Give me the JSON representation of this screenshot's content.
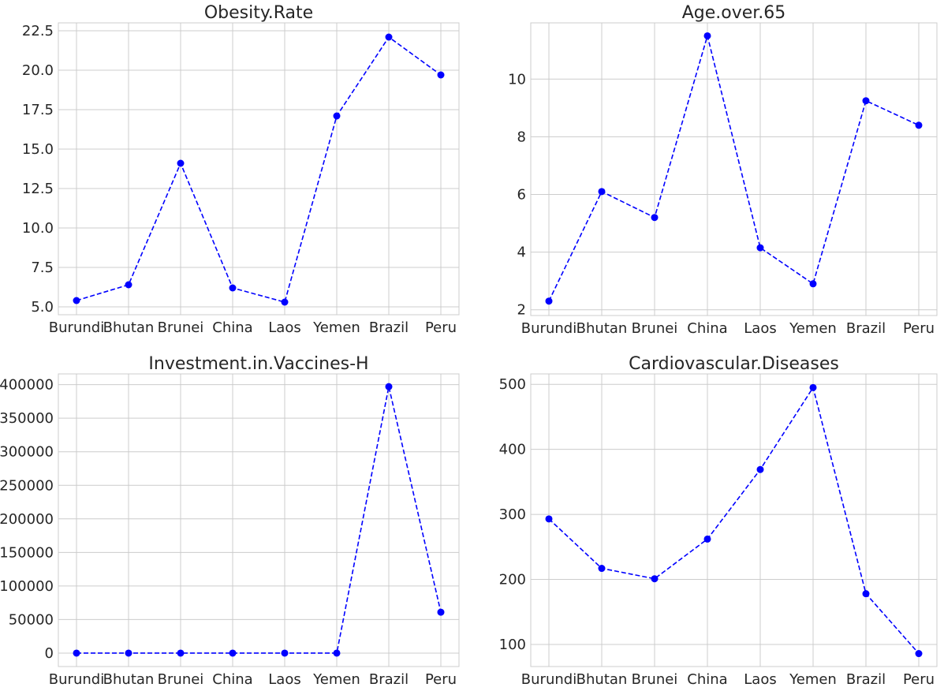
{
  "chart_data": [
    {
      "type": "line",
      "title": "Obesity.Rate",
      "categories": [
        "Burundi",
        "Bhutan",
        "Brunei",
        "China",
        "Laos",
        "Yemen",
        "Brazil",
        "Peru"
      ],
      "values": [
        5.4,
        6.4,
        14.1,
        6.2,
        5.3,
        17.1,
        22.1,
        19.7
      ],
      "yticks": [
        5.0,
        7.5,
        10.0,
        12.5,
        15.0,
        17.5,
        20.0,
        22.5
      ],
      "ytick_labels": [
        "5.0",
        "7.5",
        "10.0",
        "12.5",
        "15.0",
        "17.5",
        "20.0",
        "22.5"
      ],
      "ylim": [
        4.5,
        23.0
      ],
      "xlabel": "",
      "ylabel": "",
      "line_style": "dashed",
      "marker": "circle",
      "color": "#0000ff",
      "grid": true
    },
    {
      "type": "line",
      "title": "Age.over.65",
      "categories": [
        "Burundi",
        "Bhutan",
        "Brunei",
        "China",
        "Laos",
        "Yemen",
        "Brazil",
        "Peru"
      ],
      "values": [
        2.3,
        6.1,
        5.2,
        11.5,
        4.15,
        2.9,
        9.25,
        8.4
      ],
      "yticks": [
        2,
        4,
        6,
        8,
        10
      ],
      "ytick_labels": [
        "2",
        "4",
        "6",
        "8",
        "10"
      ],
      "ylim": [
        1.8,
        11.95
      ],
      "xlabel": "",
      "ylabel": "",
      "line_style": "dashed",
      "marker": "circle",
      "color": "#0000ff",
      "grid": true
    },
    {
      "type": "line",
      "title": "Investment.in.Vaccines-H",
      "categories": [
        "Burundi",
        "Bhutan",
        "Brunei",
        "China",
        "Laos",
        "Yemen",
        "Brazil",
        "Peru"
      ],
      "values": [
        0,
        0,
        0,
        0,
        0,
        0,
        397000,
        61000
      ],
      "yticks": [
        0,
        50000,
        100000,
        150000,
        200000,
        250000,
        300000,
        350000,
        400000
      ],
      "ytick_labels": [
        "0",
        "50000",
        "100000",
        "150000",
        "200000",
        "250000",
        "300000",
        "350000",
        "400000"
      ],
      "ylim": [
        -20000,
        416000
      ],
      "xlabel": "",
      "ylabel": "",
      "line_style": "dashed",
      "marker": "circle",
      "color": "#0000ff",
      "grid": true
    },
    {
      "type": "line",
      "title": "Cardiovascular.Diseases",
      "categories": [
        "Burundi",
        "Bhutan",
        "Brunei",
        "China",
        "Laos",
        "Yemen",
        "Brazil",
        "Peru"
      ],
      "values": [
        293,
        217,
        201,
        262,
        369,
        495,
        178,
        86
      ],
      "yticks": [
        100,
        200,
        300,
        400,
        500
      ],
      "ytick_labels": [
        "100",
        "200",
        "300",
        "400",
        "500"
      ],
      "ylim": [
        66,
        516
      ],
      "xlabel": "",
      "ylabel": "",
      "line_style": "dashed",
      "marker": "circle",
      "color": "#0000ff",
      "grid": true
    }
  ]
}
